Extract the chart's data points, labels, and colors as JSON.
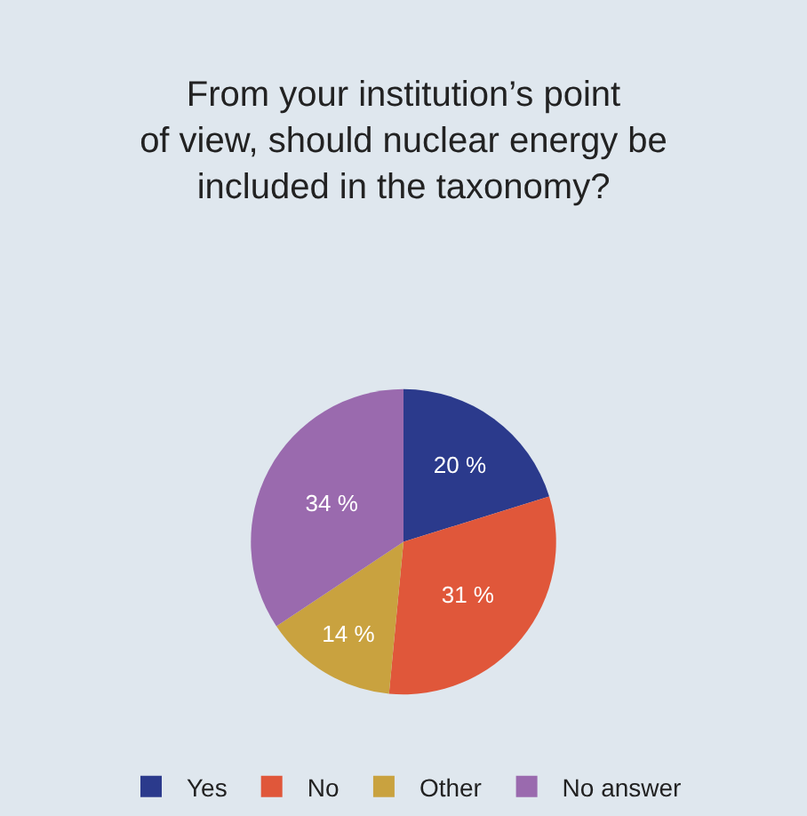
{
  "chart_data": {
    "type": "pie",
    "title": "From your institution’s point\nof view, should nuclear energy be\nincluded in the taxonomy?",
    "categories": [
      "Yes",
      "No",
      "Other",
      "No answer"
    ],
    "values": [
      20,
      31,
      14,
      34
    ],
    "value_labels": [
      "20 %",
      "31 %",
      "14 %",
      "34 %"
    ],
    "colors": [
      "#2b3a8c",
      "#e0573a",
      "#c9a23f",
      "#9a6aae"
    ],
    "legend": "bottom"
  }
}
